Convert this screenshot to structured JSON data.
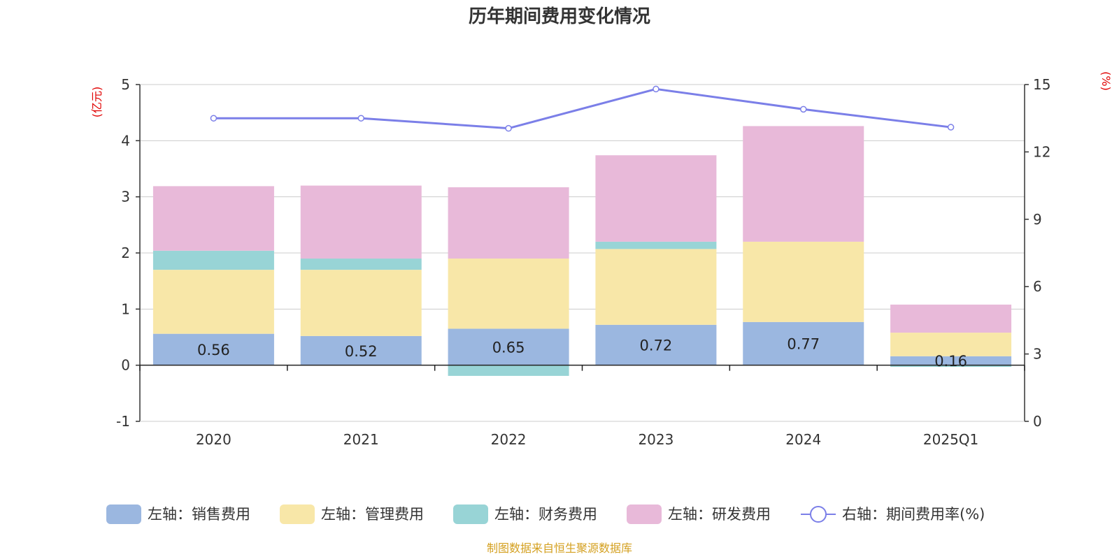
{
  "chart_data": {
    "type": "bar",
    "title": "历年期间费用变化情况",
    "categories": [
      "2020",
      "2021",
      "2022",
      "2023",
      "2024",
      "2025Q1"
    ],
    "left_axis": {
      "unit": "(亿元)",
      "ylim": [
        -1,
        5
      ],
      "ticks": [
        "-1",
        "0",
        "1",
        "2",
        "3",
        "4",
        "5"
      ]
    },
    "right_axis": {
      "unit": "(%)",
      "ylim": [
        0,
        15
      ],
      "ticks": [
        "0",
        "3",
        "6",
        "9",
        "12",
        "15"
      ]
    },
    "grid": true,
    "legend_position": "bottom",
    "series": [
      {
        "name": "左轴：销售费用",
        "type": "bar",
        "stack": "left",
        "color": "#9bb7e0",
        "values": [
          0.56,
          0.52,
          0.65,
          0.72,
          0.77,
          0.16
        ],
        "labels": [
          "0.56",
          "0.52",
          "0.65",
          "0.72",
          "0.77",
          "0.16"
        ]
      },
      {
        "name": "左轴：管理费用",
        "type": "bar",
        "stack": "left",
        "color": "#f8e7a8",
        "values": [
          1.14,
          1.18,
          1.25,
          1.35,
          1.43,
          0.42
        ]
      },
      {
        "name": "左轴：财务费用",
        "type": "bar",
        "stack": "left",
        "color": "#98d4d6",
        "values": [
          0.34,
          0.2,
          -0.19,
          0.13,
          0.0,
          -0.03
        ]
      },
      {
        "name": "左轴：研发费用",
        "type": "bar",
        "stack": "left",
        "color": "#e8b9d9",
        "values": [
          1.15,
          1.3,
          1.27,
          1.54,
          2.06,
          0.5
        ]
      },
      {
        "name": "右轴：期间费用率(%)",
        "type": "line",
        "axis": "right",
        "color": "#7b7fe8",
        "values": [
          13.5,
          13.5,
          13.05,
          14.8,
          13.9,
          13.1
        ]
      }
    ],
    "source": "制图数据来自恒生聚源数据库",
    "colors": {
      "axis_unit": "#e00000",
      "source": "#d4a020",
      "line": "#7b7fe8",
      "grid": "#cccccc"
    }
  }
}
